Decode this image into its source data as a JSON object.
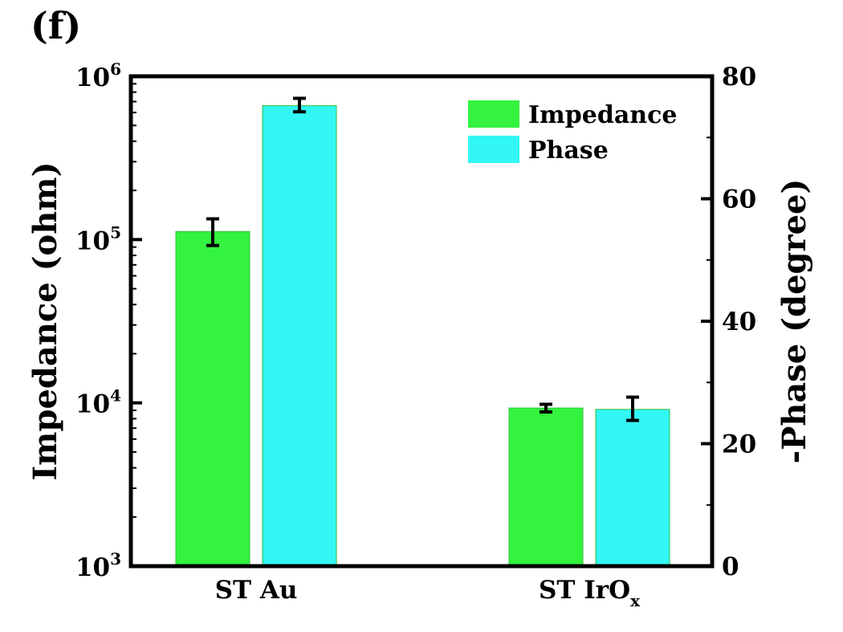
{
  "chart_data": {
    "type": "bar",
    "panel_label": "(f)",
    "categories": [
      {
        "label": "ST Au",
        "sub": ""
      },
      {
        "label": "ST IrO",
        "sub": "x"
      }
    ],
    "series": [
      {
        "name": "Impedance",
        "axis": "left",
        "color": "#33f33f",
        "values": [
          112000,
          9300
        ],
        "err_low": [
          92000,
          8800
        ],
        "err_high": [
          134000,
          9800
        ]
      },
      {
        "name": "Phase",
        "axis": "right",
        "color": "#33f7f5",
        "values": [
          75.2,
          25.6
        ],
        "err_low": [
          74.2,
          23.8
        ],
        "err_high": [
          76.4,
          27.6
        ]
      }
    ],
    "ylabel": "Impedance (ohm)",
    "ylabel_right": "-Phase (degree)",
    "yscale": "log",
    "ylim": [
      1000,
      1000000
    ],
    "y_ticks": [
      {
        "base": "10",
        "exp": "3"
      },
      {
        "base": "10",
        "exp": "4"
      },
      {
        "base": "10",
        "exp": "5"
      },
      {
        "base": "10",
        "exp": "6"
      }
    ],
    "ylim_right": [
      0,
      80
    ],
    "y_right_ticks": [
      "0",
      "20",
      "40",
      "60",
      "80"
    ],
    "legend": {
      "position": "top-right",
      "entries": [
        "Impedance",
        "Phase"
      ]
    },
    "grid": false
  }
}
